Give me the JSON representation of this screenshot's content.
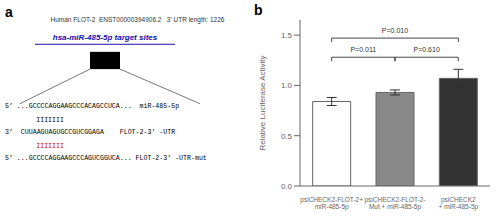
{
  "chart_data": [
    {
      "type": "diagram",
      "title": "Human FLOT-2  ENST00000394906.2   3’ UTR length: 1226",
      "annotations": [
        {
          "text": "a"
        },
        {
          "text": "hsa-miR-485-5p target sites",
          "color": "#1a0dab"
        },
        {
          "text": "5’ ...GCCCCAGGAAGCCCACAGCCUCA...  miR-485-5p",
          "color": "#000000"
        },
        {
          "text": "IIIIIII",
          "color": "#000000"
        },
        {
          "text": "3’  CUUAAGUAGUGCCGUCGGAGA    FLOT-2-3’ -UTR",
          "color": "#000000"
        },
        {
          "text": "IIIIIII",
          "color": "#cc0000"
        },
        {
          "text": "5’ ...GCCCCAGGAAGCCCAGUCGGUCA... FLOT-2-3’ -UTR-mut",
          "color": "#000000"
        }
      ]
    },
    {
      "type": "bar",
      "annotations": [
        {
          "text": "b"
        }
      ],
      "categories": [
        "psiCHECK2-FLOT-2+\nmiR-485-5p",
        "psiCHECK2-FLOT-2-\nMut + miR-485-5p",
        "psiCHECK2\n+ miR-485-5p"
      ],
      "values": [
        0.84,
        0.93,
        1.07
      ],
      "errors": [
        0.04,
        0.025,
        0.09
      ],
      "colors": [
        "#ffffff",
        "#888888",
        "#333333"
      ],
      "ylabel": "Relative Luciferase Activity",
      "ylim": [
        0,
        1.65
      ],
      "yticks": [
        {
          "value": 0.0,
          "label": "0.0"
        },
        {
          "value": 0.5,
          "label": "0.5"
        },
        {
          "value": 1.0,
          "label": "1.0"
        },
        {
          "value": 1.5,
          "label": "1.5"
        }
      ],
      "significance": [
        {
          "from": "psiCHECK2-FLOT-2+\nmiR-485-5p",
          "to": "psiCHECK2\n+ miR-485-5p",
          "y": 1.47,
          "label": "P=0.010"
        },
        {
          "from": "psiCHECK2-FLOT-2+\nmiR-485-5p",
          "to": "psiCHECK2-FLOT-2-\nMut + miR-485-5p",
          "y": 1.28,
          "label": "P=0.011"
        },
        {
          "from": "psiCHECK2-FLOT-2-\nMut + miR-485-5p",
          "to": "psiCHECK2\n+ miR-485-5p",
          "y": 1.28,
          "label": "P=0.610"
        }
      ]
    }
  ]
}
